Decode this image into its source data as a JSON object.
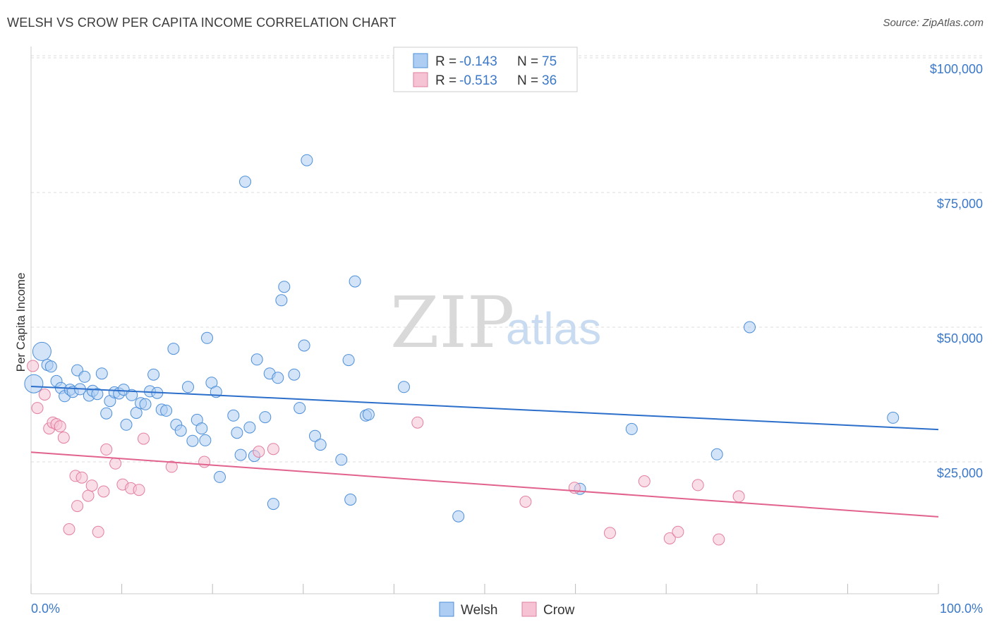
{
  "title": "WELSH VS CROW PER CAPITA INCOME CORRELATION CHART",
  "source": "Source: ZipAtlas.com",
  "watermark": {
    "zip": "ZIP",
    "atlas": "atlas"
  },
  "colors": {
    "welsh_fill": "#aecdf3",
    "welsh_stroke": "#4d8fd8",
    "welsh_line": "#2c6fcb",
    "crow_fill": "#f6c3d4",
    "crow_stroke": "#e27fa0",
    "crow_line": "#e2628e",
    "accent_text": "#3b78c8",
    "grid": "#dddddd"
  },
  "legend": {
    "rows": [
      {
        "r_label": "R =",
        "r_value": "-0.143",
        "n_label": "N =",
        "n_value": "75"
      },
      {
        "r_label": "R =",
        "r_value": "-0.513",
        "n_label": "N =",
        "n_value": "36"
      }
    ]
  },
  "bottom_legend": [
    "Welsh",
    "Crow"
  ],
  "chart_data": {
    "type": "scatter",
    "title": "WELSH VS CROW PER CAPITA INCOME CORRELATION CHART",
    "xlabel": "",
    "ylabel": "Per Capita Income",
    "xlim": [
      0,
      100
    ],
    "ylim": [
      0,
      105000
    ],
    "x_tick_labels": [
      "0.0%",
      "100.0%"
    ],
    "y_ticks": [
      25000,
      50000,
      75000,
      100000
    ],
    "y_tick_labels": [
      "$25,000",
      "$50,000",
      "$75,000",
      "$100,000"
    ],
    "grid": true,
    "series": [
      {
        "name": "Welsh",
        "trend": {
          "x": [
            0,
            100
          ],
          "y": [
            39000,
            31000
          ]
        },
        "points": [
          [
            0.3,
            39500
          ],
          [
            1.2,
            45500
          ],
          [
            1.8,
            43000
          ],
          [
            2.2,
            42700
          ],
          [
            2.8,
            40000
          ],
          [
            3.3,
            38700
          ],
          [
            3.7,
            37200
          ],
          [
            4.3,
            38400
          ],
          [
            4.6,
            38000
          ],
          [
            5.1,
            42000
          ],
          [
            5.4,
            38500
          ],
          [
            5.9,
            40800
          ],
          [
            6.4,
            37300
          ],
          [
            6.8,
            38200
          ],
          [
            7.3,
            37600
          ],
          [
            7.8,
            41400
          ],
          [
            8.3,
            34000
          ],
          [
            8.7,
            36300
          ],
          [
            9.2,
            37900
          ],
          [
            9.7,
            37700
          ],
          [
            10.2,
            38400
          ],
          [
            10.5,
            31900
          ],
          [
            11.1,
            37400
          ],
          [
            11.6,
            34100
          ],
          [
            12.1,
            35900
          ],
          [
            12.6,
            35700
          ],
          [
            13.1,
            38100
          ],
          [
            13.5,
            41200
          ],
          [
            13.9,
            37800
          ],
          [
            14.4,
            34700
          ],
          [
            14.9,
            34500
          ],
          [
            15.7,
            46000
          ],
          [
            16.0,
            31900
          ],
          [
            16.5,
            30800
          ],
          [
            17.3,
            38900
          ],
          [
            17.8,
            28900
          ],
          [
            18.3,
            32800
          ],
          [
            18.8,
            31200
          ],
          [
            19.2,
            29000
          ],
          [
            19.4,
            48000
          ],
          [
            19.9,
            39700
          ],
          [
            20.4,
            38000
          ],
          [
            20.8,
            22200
          ],
          [
            22.3,
            33600
          ],
          [
            22.7,
            30400
          ],
          [
            23.1,
            26300
          ],
          [
            23.6,
            77000
          ],
          [
            24.1,
            31400
          ],
          [
            24.6,
            26100
          ],
          [
            24.9,
            44000
          ],
          [
            25.8,
            33300
          ],
          [
            26.3,
            41400
          ],
          [
            26.7,
            17200
          ],
          [
            27.2,
            40600
          ],
          [
            27.6,
            55000
          ],
          [
            27.9,
            57500
          ],
          [
            29.0,
            41200
          ],
          [
            29.6,
            35000
          ],
          [
            30.1,
            46600
          ],
          [
            30.4,
            81000
          ],
          [
            31.3,
            29800
          ],
          [
            31.9,
            28200
          ],
          [
            34.2,
            25400
          ],
          [
            35.0,
            43900
          ],
          [
            35.2,
            18000
          ],
          [
            35.7,
            58500
          ],
          [
            36.9,
            33600
          ],
          [
            37.2,
            33800
          ],
          [
            41.1,
            38900
          ],
          [
            47.1,
            14900
          ],
          [
            60.5,
            20000
          ],
          [
            66.2,
            31100
          ],
          [
            75.6,
            26400
          ],
          [
            79.2,
            50000
          ],
          [
            95.0,
            33200
          ]
        ]
      },
      {
        "name": "Crow",
        "trend": {
          "x": [
            0,
            100
          ],
          "y": [
            26800,
            14800
          ]
        },
        "points": [
          [
            0.2,
            42800
          ],
          [
            0.7,
            35000
          ],
          [
            1.5,
            37500
          ],
          [
            2.0,
            31200
          ],
          [
            2.4,
            32300
          ],
          [
            2.8,
            32000
          ],
          [
            3.2,
            31600
          ],
          [
            3.6,
            29500
          ],
          [
            4.2,
            12500
          ],
          [
            4.9,
            22400
          ],
          [
            5.1,
            16800
          ],
          [
            5.6,
            22100
          ],
          [
            6.3,
            18700
          ],
          [
            6.7,
            20600
          ],
          [
            7.4,
            12000
          ],
          [
            8.0,
            19500
          ],
          [
            8.3,
            27300
          ],
          [
            9.3,
            24700
          ],
          [
            10.1,
            20800
          ],
          [
            11.0,
            20100
          ],
          [
            11.9,
            19800
          ],
          [
            12.4,
            29300
          ],
          [
            15.5,
            24100
          ],
          [
            19.1,
            25000
          ],
          [
            25.1,
            26900
          ],
          [
            26.7,
            27400
          ],
          [
            42.6,
            32300
          ],
          [
            54.5,
            17600
          ],
          [
            59.9,
            20200
          ],
          [
            63.8,
            11800
          ],
          [
            67.6,
            21400
          ],
          [
            70.4,
            10800
          ],
          [
            71.3,
            12000
          ],
          [
            73.5,
            20700
          ],
          [
            75.8,
            10600
          ],
          [
            78.0,
            18600
          ]
        ]
      }
    ]
  }
}
